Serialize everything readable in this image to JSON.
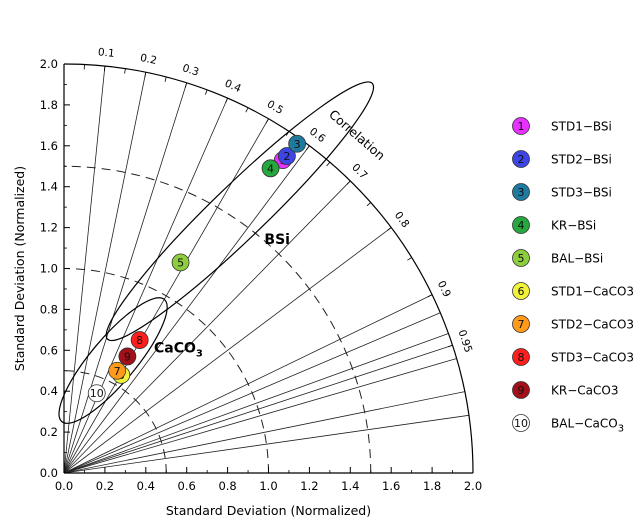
{
  "chart_data": {
    "type": "scatter",
    "subtype": "taylor-diagram",
    "xlabel": "Standard Deviation (Normalized)",
    "ylabel": "Standard Deviation (Normalized)",
    "correlation_label": "Correlation",
    "xlim": [
      0,
      2.0
    ],
    "ylim": [
      0,
      2.0
    ],
    "x_ticks": [
      "0.0",
      "0.2",
      "0.4",
      "0.6",
      "0.8",
      "1.0",
      "1.2",
      "1.4",
      "1.6",
      "1.8",
      "2.0"
    ],
    "y_ticks": [
      "0.0",
      "0.2",
      "0.4",
      "0.6",
      "0.8",
      "1.0",
      "1.2",
      "1.4",
      "1.6",
      "1.8",
      "2.0"
    ],
    "correlation_ticks": [
      "0.1",
      "0.2",
      "0.3",
      "0.4",
      "0.5",
      "0.6",
      "0.7",
      "0.8",
      "0.9",
      "0.95"
    ],
    "correlation_lines": [
      0.1,
      0.2,
      0.3,
      0.4,
      0.5,
      0.6,
      0.7,
      0.8,
      0.9,
      0.92,
      0.94,
      0.95,
      0.96,
      0.98,
      0.99
    ],
    "std_arcs": [
      0.5,
      1.0,
      1.5
    ],
    "grid": true,
    "legend_position": "right",
    "group_labels": [
      {
        "text": "BSi",
        "x": 0.98,
        "y": 1.12
      },
      {
        "text": "CaCO",
        "sub": "3",
        "x": 0.44,
        "y": 0.59
      }
    ],
    "ellipses": [
      {
        "name": "BSi",
        "cx": 0.86,
        "cy": 1.28,
        "rx": 0.9,
        "ry": 0.13,
        "angle": 44
      },
      {
        "name": "CaCO3",
        "cx": 0.24,
        "cy": 0.55,
        "rx": 0.39,
        "ry": 0.11,
        "angle": 50
      }
    ],
    "points": [
      {
        "num": "1",
        "name": "STD1−BSi",
        "x": 1.07,
        "y": 1.53,
        "color": "#e632ff"
      },
      {
        "num": "2",
        "name": "STD2−BSi",
        "x": 1.09,
        "y": 1.55,
        "color": "#3d45e6"
      },
      {
        "num": "3",
        "name": "STD3−BSi",
        "x": 1.14,
        "y": 1.61,
        "color": "#1f7aa0"
      },
      {
        "num": "4",
        "name": "KR−BSi",
        "x": 1.01,
        "y": 1.49,
        "color": "#27a83f"
      },
      {
        "num": "5",
        "name": "BAL−BSi",
        "x": 0.57,
        "y": 1.03,
        "color": "#8cce3e"
      },
      {
        "num": "6",
        "name": "STD1−CaCO3",
        "x": 0.28,
        "y": 0.48,
        "color": "#f2f23a"
      },
      {
        "num": "7",
        "name": "STD2−CaCO3",
        "x": 0.26,
        "y": 0.5,
        "color": "#ff9a1a"
      },
      {
        "num": "8",
        "name": "STD3−CaCO3",
        "x": 0.37,
        "y": 0.65,
        "color": "#ff1e1e"
      },
      {
        "num": "9",
        "name": "KR−CaCO3",
        "x": 0.31,
        "y": 0.57,
        "color": "#a3101a"
      },
      {
        "num": "10",
        "name": "BAL−CaCO",
        "name_sub": "3",
        "x": 0.16,
        "y": 0.39,
        "color": "none"
      }
    ]
  }
}
